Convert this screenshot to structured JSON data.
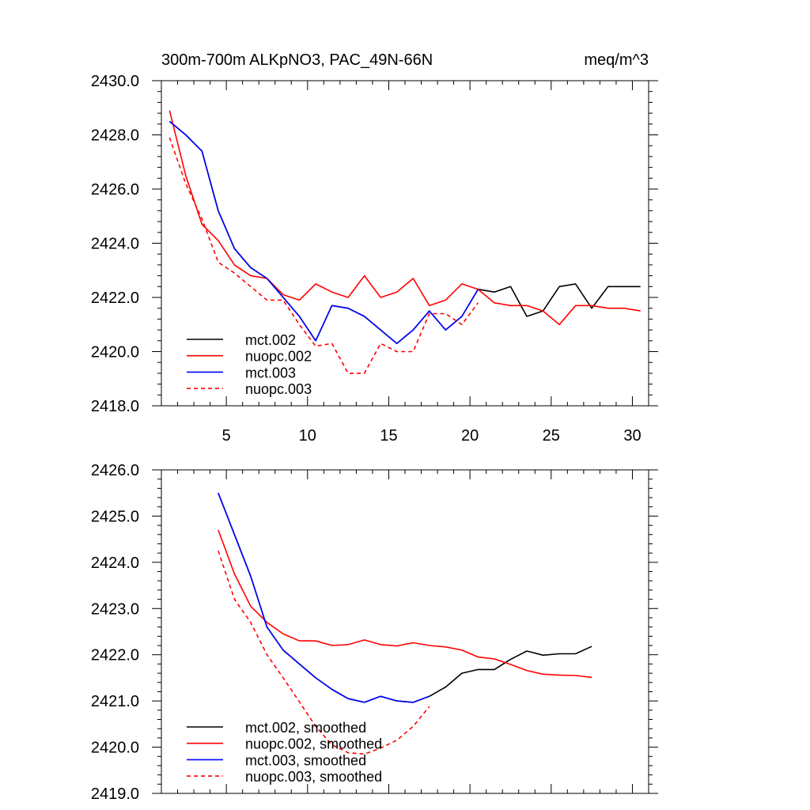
{
  "chart_data": [
    {
      "type": "line",
      "title_left": "300m-700m ALKpNO3, PAC_49N-66N",
      "title_right": "meq/m^3",
      "xlabel": "",
      "ylabel": "",
      "xlim": [
        1,
        31
      ],
      "ylim": [
        2418.0,
        2430.0
      ],
      "xticks": [
        5,
        10,
        15,
        20,
        25,
        30
      ],
      "xtick_labels": [
        "5",
        "10",
        "15",
        "20",
        "25",
        "30"
      ],
      "yticks": [
        2418,
        2420,
        2422,
        2424,
        2426,
        2428,
        2430
      ],
      "ytick_labels": [
        "2418.0",
        "2420.0",
        "2422.0",
        "2424.0",
        "2426.0",
        "2428.0",
        "2430.0"
      ],
      "legend": "bottom-left",
      "series": [
        {
          "name": "mct.002",
          "color": "#000000",
          "dash": "solid",
          "x": [
            1.5,
            2.5,
            3.5,
            4.5,
            5.5,
            6.5,
            7.5,
            8.5,
            9.5,
            10.5,
            11.5,
            12.5,
            13.5,
            14.5,
            15.5,
            16.5,
            17.5,
            18.5,
            19.5,
            20.5,
            21.5,
            22.5,
            23.5,
            24.5,
            25.5,
            26.5,
            27.5,
            28.5,
            29.5,
            30.5
          ],
          "values": [
            2428.5,
            2428.0,
            2427.4,
            2425.2,
            2423.8,
            2423.1,
            2422.7,
            2422.0,
            2421.3,
            2420.4,
            2421.7,
            2421.6,
            2421.3,
            2420.8,
            2420.3,
            2420.8,
            2421.5,
            2420.8,
            2421.3,
            2422.3,
            2422.2,
            2422.4,
            2421.3,
            2421.5,
            2422.4,
            2422.5,
            2421.6,
            2422.4,
            2422.4,
            2422.4
          ]
        },
        {
          "name": "nuopc.002",
          "color": "#ff0000",
          "dash": "solid",
          "x": [
            1.5,
            2.5,
            3.5,
            4.5,
            5.5,
            6.5,
            7.5,
            8.5,
            9.5,
            10.5,
            11.5,
            12.5,
            13.5,
            14.5,
            15.5,
            16.5,
            17.5,
            18.5,
            19.5,
            20.5,
            21.5,
            22.5,
            23.5,
            24.5,
            25.5,
            26.5,
            27.5,
            28.5,
            29.5,
            30.5
          ],
          "values": [
            2428.9,
            2426.5,
            2424.7,
            2424.1,
            2423.2,
            2422.8,
            2422.7,
            2422.1,
            2421.9,
            2422.5,
            2422.2,
            2422.0,
            2422.8,
            2422.0,
            2422.2,
            2422.7,
            2421.7,
            2421.9,
            2422.5,
            2422.3,
            2421.8,
            2421.7,
            2421.7,
            2421.5,
            2421.0,
            2421.7,
            2421.7,
            2421.6,
            2421.6,
            2421.5
          ]
        },
        {
          "name": "mct.003",
          "color": "#0000ff",
          "dash": "solid",
          "x": [
            1.5,
            2.5,
            3.5,
            4.5,
            5.5,
            6.5,
            7.5,
            8.5,
            9.5,
            10.5,
            11.5,
            12.5,
            13.5,
            14.5,
            15.5,
            16.5,
            17.5,
            18.5,
            19.5,
            20.5
          ],
          "values": [
            2428.5,
            2428.0,
            2427.4,
            2425.2,
            2423.8,
            2423.1,
            2422.7,
            2422.0,
            2421.3,
            2420.4,
            2421.7,
            2421.6,
            2421.3,
            2420.8,
            2420.3,
            2420.8,
            2421.5,
            2420.8,
            2421.3,
            2422.3
          ]
        },
        {
          "name": "nuopc.003",
          "color": "#ff0000",
          "dash": "dashed",
          "x": [
            1.5,
            2.5,
            3.5,
            4.5,
            5.5,
            6.5,
            7.5,
            8.5,
            9.5,
            10.5,
            11.5,
            12.5,
            13.5,
            14.5,
            15.5,
            16.5,
            17.5,
            18.5,
            19.5,
            20.5
          ],
          "values": [
            2427.9,
            2426.2,
            2424.9,
            2423.3,
            2422.9,
            2422.4,
            2421.9,
            2421.9,
            2421.0,
            2420.2,
            2420.3,
            2419.2,
            2419.2,
            2420.3,
            2420.0,
            2420.0,
            2421.4,
            2421.4,
            2421.0,
            2421.8
          ]
        }
      ]
    },
    {
      "type": "line",
      "title_left": "",
      "title_right": "",
      "xlabel": "",
      "ylabel": "",
      "xlim": [
        1,
        31
      ],
      "ylim": [
        2419.0,
        2426.0
      ],
      "xticks": [
        5,
        10,
        15,
        20,
        25,
        30
      ],
      "xtick_labels": [],
      "yticks": [
        2419,
        2420,
        2421,
        2422,
        2423,
        2424,
        2425,
        2426
      ],
      "ytick_labels": [
        "2419.0",
        "2420.0",
        "2421.0",
        "2422.0",
        "2423.0",
        "2424.0",
        "2425.0",
        "2426.0"
      ],
      "legend": "bottom-left",
      "series": [
        {
          "name": "mct.002, smoothed",
          "color": "#000000",
          "dash": "solid",
          "x": [
            4.5,
            5.5,
            6.5,
            7.5,
            8.5,
            9.5,
            10.5,
            11.5,
            12.5,
            13.5,
            14.5,
            15.5,
            16.5,
            17.5,
            18.5,
            19.5,
            20.5,
            21.5,
            22.5,
            23.5,
            24.5,
            25.5,
            26.5,
            27.5
          ],
          "values": [
            2425.5,
            2424.6,
            2423.7,
            2422.6,
            2422.1,
            2421.8,
            2421.5,
            2421.25,
            2421.05,
            2420.97,
            2421.1,
            2421.0,
            2420.97,
            2421.1,
            2421.3,
            2421.6,
            2421.68,
            2421.68,
            2421.9,
            2422.08,
            2421.99,
            2422.02,
            2422.02,
            2422.18
          ]
        },
        {
          "name": "nuopc.002, smoothed",
          "color": "#ff0000",
          "dash": "solid",
          "x": [
            4.5,
            5.5,
            6.5,
            7.5,
            8.5,
            9.5,
            10.5,
            11.5,
            12.5,
            13.5,
            14.5,
            15.5,
            16.5,
            17.5,
            18.5,
            19.5,
            20.5,
            21.5,
            22.5,
            23.5,
            24.5,
            25.5,
            26.5,
            27.5
          ],
          "values": [
            2424.7,
            2423.75,
            2423.05,
            2422.7,
            2422.45,
            2422.3,
            2422.3,
            2422.2,
            2422.22,
            2422.32,
            2422.22,
            2422.19,
            2422.26,
            2422.2,
            2422.17,
            2422.1,
            2421.95,
            2421.91,
            2421.79,
            2421.66,
            2421.58,
            2421.56,
            2421.55,
            2421.51
          ]
        },
        {
          "name": "mct.003, smoothed",
          "color": "#0000ff",
          "dash": "solid",
          "x": [
            4.5,
            5.5,
            6.5,
            7.5,
            8.5,
            9.5,
            10.5,
            11.5,
            12.5,
            13.5,
            14.5,
            15.5,
            16.5,
            17.5
          ],
          "values": [
            2425.5,
            2424.6,
            2423.7,
            2422.6,
            2422.1,
            2421.8,
            2421.5,
            2421.25,
            2421.05,
            2420.97,
            2421.1,
            2421.0,
            2420.97,
            2421.1
          ]
        },
        {
          "name": "nuopc.003, smoothed",
          "color": "#ff0000",
          "dash": "dashed",
          "x": [
            4.5,
            5.5,
            6.5,
            7.5,
            8.5,
            9.5,
            10.5,
            11.5,
            12.5,
            13.5,
            14.5,
            15.5,
            16.5,
            17.5
          ],
          "values": [
            2424.25,
            2423.2,
            2422.7,
            2422.0,
            2421.5,
            2420.98,
            2420.45,
            2420.05,
            2419.88,
            2419.85,
            2419.98,
            2420.15,
            2420.45,
            2420.88
          ]
        }
      ]
    }
  ]
}
